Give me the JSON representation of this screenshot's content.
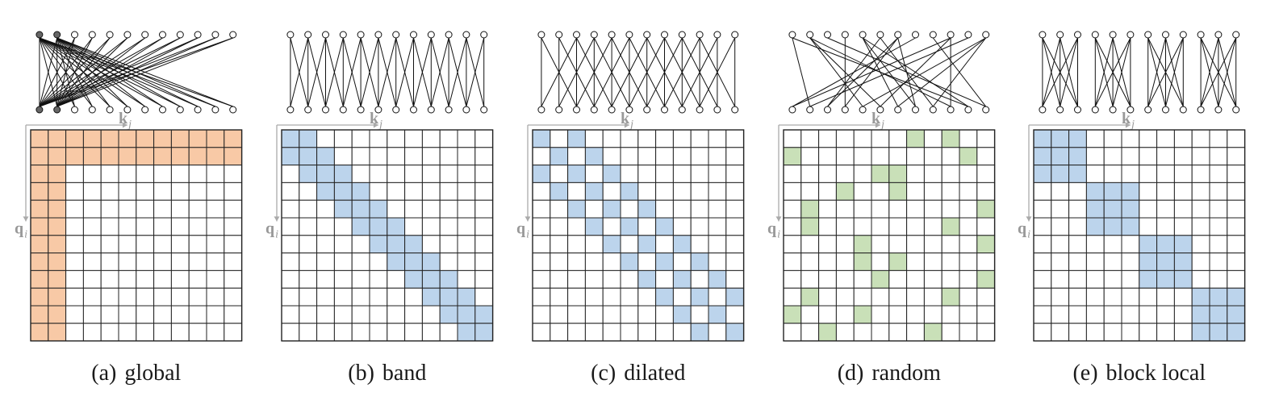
{
  "axes": {
    "key_label": "k",
    "key_sub": "j",
    "query_label": "q",
    "query_sub": "i"
  },
  "colors": {
    "global": "#f8c9a6",
    "band": "#bcd4ec",
    "dilated": "#bcd4ec",
    "random": "#c9e0b8",
    "block": "#bcd4ec",
    "grid": "#222222",
    "axis": "#aaaaaa",
    "graph_line": "#111111"
  },
  "panels": [
    {
      "id": "global",
      "letter": "(a)",
      "name": "global",
      "color_key": "global",
      "pattern": "global"
    },
    {
      "id": "band",
      "letter": "(b)",
      "name": "band",
      "color_key": "band",
      "pattern": "band"
    },
    {
      "id": "dilated",
      "letter": "(c)",
      "name": "dilated",
      "color_key": "dilated",
      "pattern": "dilated"
    },
    {
      "id": "random",
      "letter": "(d)",
      "name": "random",
      "color_key": "random",
      "pattern": "random",
      "cells": [
        [
          0,
          7
        ],
        [
          0,
          9
        ],
        [
          1,
          0
        ],
        [
          1,
          10
        ],
        [
          2,
          5
        ],
        [
          2,
          6
        ],
        [
          3,
          3
        ],
        [
          3,
          6
        ],
        [
          4,
          1
        ],
        [
          4,
          11
        ],
        [
          5,
          1
        ],
        [
          5,
          9
        ],
        [
          6,
          4
        ],
        [
          6,
          11
        ],
        [
          7,
          4
        ],
        [
          7,
          6
        ],
        [
          8,
          5
        ],
        [
          8,
          11
        ],
        [
          9,
          1
        ],
        [
          9,
          9
        ],
        [
          10,
          0
        ],
        [
          10,
          4
        ],
        [
          11,
          2
        ],
        [
          11,
          8
        ]
      ]
    },
    {
      "id": "block",
      "letter": "(e)",
      "name": "block local",
      "color_key": "block",
      "pattern": "block"
    }
  ]
}
